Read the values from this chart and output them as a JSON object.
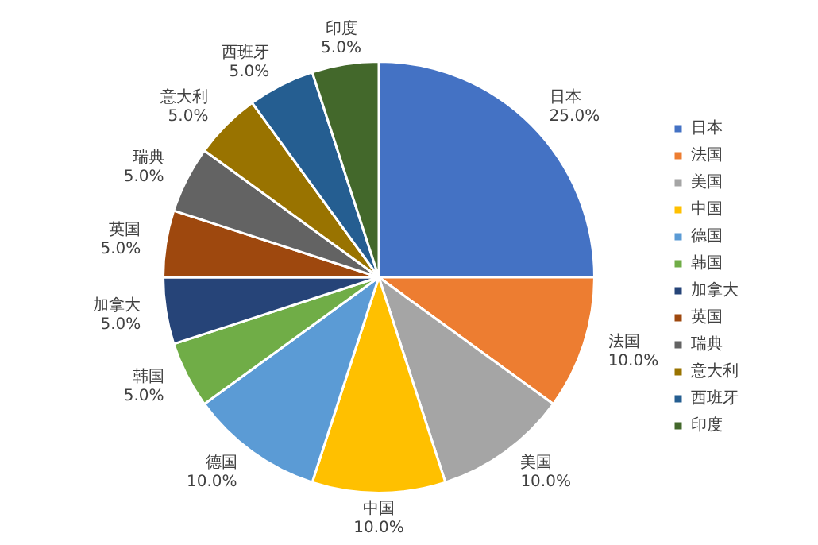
{
  "chart_data": {
    "type": "pie",
    "categories": [
      "日本",
      "法国",
      "美国",
      "中国",
      "德国",
      "韩国",
      "加拿大",
      "英国",
      "瑞典",
      "意大利",
      "西班牙",
      "印度"
    ],
    "values": [
      25,
      10,
      10,
      10,
      10,
      5,
      5,
      5,
      5,
      5,
      5,
      5
    ],
    "value_labels": [
      "25.0%",
      "10.0%",
      "10.0%",
      "10.0%",
      "10.0%",
      "5.0%",
      "5.0%",
      "5.0%",
      "5.0%",
      "5.0%",
      "5.0%",
      "5.0%"
    ],
    "colors": [
      "#4472c4",
      "#ed7d31",
      "#a5a5a5",
      "#ffc000",
      "#5b9bd5",
      "#70ad47",
      "#264478",
      "#9e480e",
      "#636363",
      "#997300",
      "#255e91",
      "#43682b"
    ],
    "legend": "right"
  }
}
